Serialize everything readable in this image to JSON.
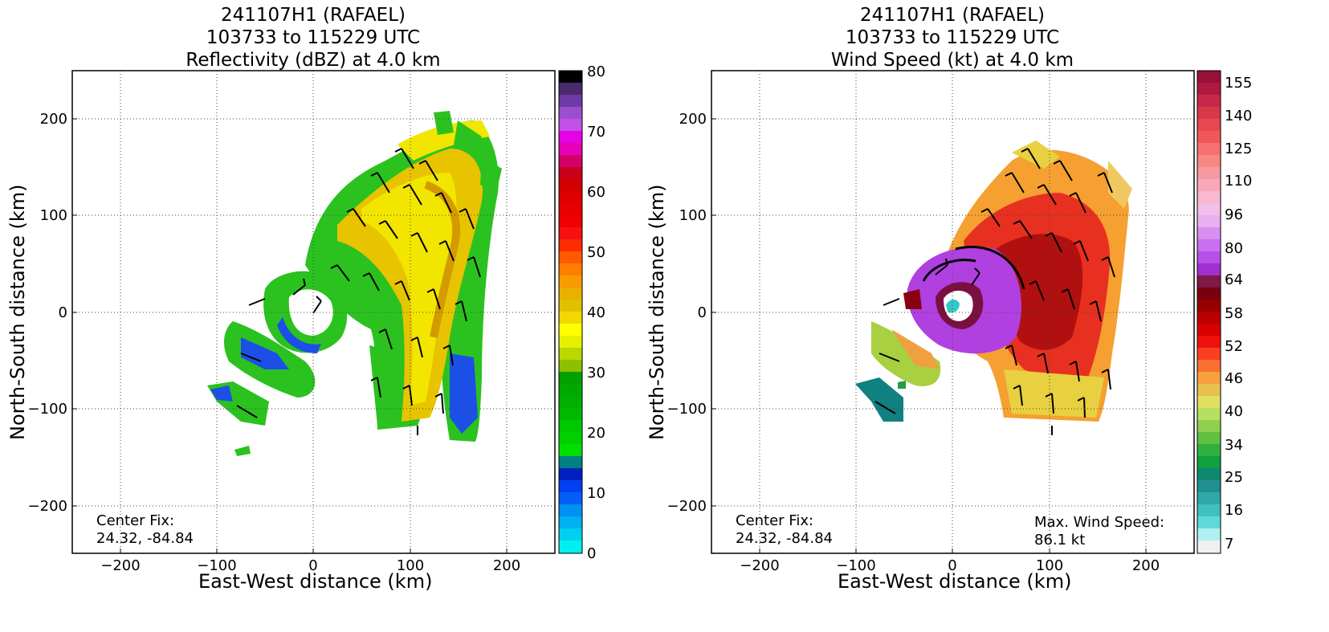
{
  "panels": [
    {
      "title_lines": [
        "241107H1 (RAFAEL)",
        "103733 to 115229 UTC",
        "Reflectivity (dBZ) at 4.0 km"
      ],
      "xlabel": "East-West distance (km)",
      "ylabel": "North-South distance (km)",
      "x_ticks": [
        "−200",
        "−100",
        "0",
        "100",
        "200"
      ],
      "y_ticks": [
        "200",
        "100",
        "0",
        "−100",
        "−200"
      ],
      "center_fix_label": "Center Fix:",
      "center_fix_value": "24.32, -84.84",
      "colorbar_ticks": [
        "80",
        "70",
        "60",
        "50",
        "40",
        "30",
        "20",
        "10",
        "0"
      ]
    },
    {
      "title_lines": [
        "241107H1 (RAFAEL)",
        "103733 to 115229 UTC",
        "Wind Speed (kt) at 4.0 km"
      ],
      "xlabel": "East-West distance (km)",
      "ylabel": "North-South distance (km)",
      "x_ticks": [
        "−200",
        "−100",
        "0",
        "100",
        "200"
      ],
      "y_ticks": [
        "200",
        "100",
        "0",
        "−100",
        "−200"
      ],
      "center_fix_label": "Center Fix:",
      "center_fix_value": "24.32, -84.84",
      "max_wind_label": "Max. Wind Speed:",
      "max_wind_value": "86.1 kt",
      "colorbar_ticks": [
        "155",
        "140",
        "125",
        "110",
        "96",
        "80",
        "64",
        "58",
        "52",
        "46",
        "40",
        "34",
        "25",
        "16",
        "7"
      ]
    }
  ],
  "chart_data": [
    {
      "type": "heatmap",
      "title": "241107H1 (RAFAEL) 103733 to 115229 UTC Reflectivity (dBZ) at 4.0 km",
      "xlabel": "East-West distance (km)",
      "ylabel": "North-South distance (km)",
      "xlim": [
        -250,
        250
      ],
      "ylim": [
        -250,
        250
      ],
      "x_ticks": [
        -200,
        -100,
        0,
        100,
        200
      ],
      "y_ticks": [
        -200,
        -100,
        0,
        100,
        200
      ],
      "grid": true,
      "colorbar": {
        "label": "Reflectivity (dBZ)",
        "range": [
          0,
          80
        ],
        "ticks": [
          0,
          10,
          20,
          30,
          40,
          50,
          60,
          70,
          80
        ]
      },
      "center_fix": [
        24.32,
        -84.84
      ]
    },
    {
      "type": "heatmap",
      "title": "241107H1 (RAFAEL) 103733 to 115229 UTC Wind Speed (kt) at 4.0 km",
      "xlabel": "East-West distance (km)",
      "ylabel": "North-South distance (km)",
      "xlim": [
        -250,
        250
      ],
      "ylim": [
        -250,
        250
      ],
      "x_ticks": [
        -200,
        -100,
        0,
        100,
        200
      ],
      "y_ticks": [
        -200,
        -100,
        0,
        100,
        200
      ],
      "grid": true,
      "colorbar": {
        "label": "Wind Speed (kt)",
        "ticks": [
          7,
          16,
          25,
          34,
          40,
          46,
          52,
          58,
          64,
          80,
          96,
          110,
          125,
          140,
          155
        ]
      },
      "center_fix": [
        24.32,
        -84.84
      ],
      "max_wind_speed_kt": 86.1
    }
  ]
}
